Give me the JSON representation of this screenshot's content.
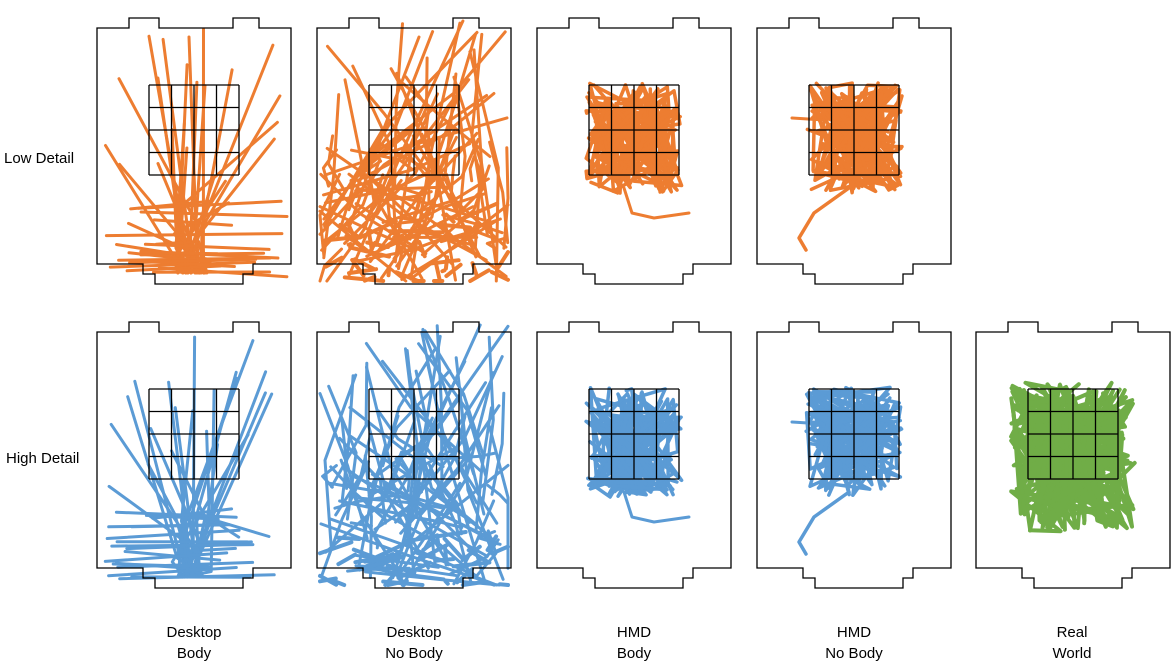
{
  "rows": [
    {
      "label": "Low Detail",
      "color": "#ED7D31"
    },
    {
      "label": "High Detail",
      "color": "#5B9BD5"
    }
  ],
  "columns": [
    {
      "line1": "Desktop",
      "line2": "Body"
    },
    {
      "line1": "Desktop",
      "line2": "No Body"
    },
    {
      "line1": "HMD",
      "line2": "Body"
    },
    {
      "line1": "HMD",
      "line2": "No Body"
    },
    {
      "line1": "Real",
      "line2": "World"
    }
  ],
  "real_world_color": "#70AD47",
  "panels": [
    {
      "row": 0,
      "col": 0,
      "pattern": "desktop-body",
      "present": true
    },
    {
      "row": 0,
      "col": 1,
      "pattern": "desktop-nobody",
      "present": true
    },
    {
      "row": 0,
      "col": 2,
      "pattern": "hmd-body",
      "present": true
    },
    {
      "row": 0,
      "col": 3,
      "pattern": "hmd-nobody",
      "present": true
    },
    {
      "row": 0,
      "col": 4,
      "pattern": "none",
      "present": false
    },
    {
      "row": 1,
      "col": 0,
      "pattern": "desktop-body",
      "present": true
    },
    {
      "row": 1,
      "col": 1,
      "pattern": "desktop-nobody",
      "present": true
    },
    {
      "row": 1,
      "col": 2,
      "pattern": "hmd-body",
      "present": true
    },
    {
      "row": 1,
      "col": 3,
      "pattern": "hmd-nobody",
      "present": true
    },
    {
      "row": 1,
      "col": 4,
      "pattern": "real-world",
      "present": true
    }
  ]
}
